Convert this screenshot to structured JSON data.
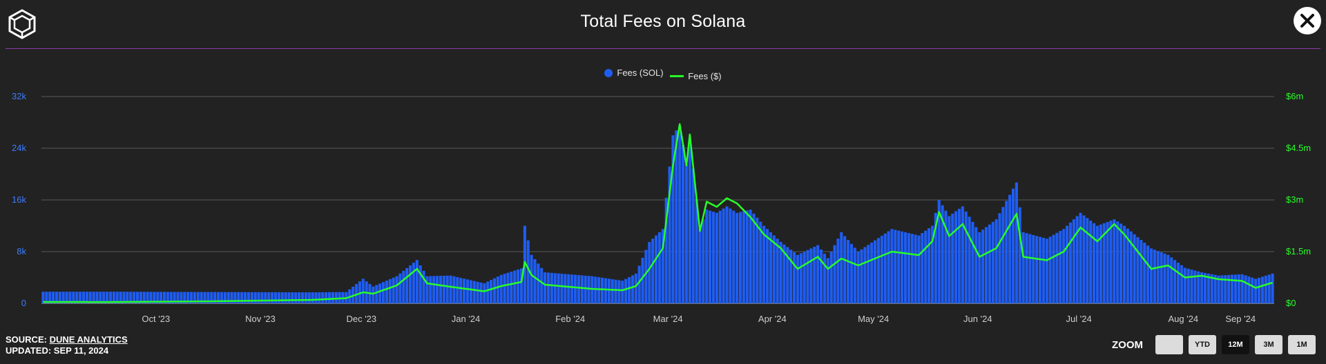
{
  "header": {
    "title": "Total Fees on Solana",
    "logo_icon": "cube-logo-icon",
    "close_icon": "close-icon"
  },
  "legend": {
    "sol_label": "Fees (SOL)",
    "usd_label": "Fees ($)"
  },
  "footer": {
    "source_prefix": "SOURCE: ",
    "source_link": "DUNE ANALYTICS",
    "updated": "UPDATED: SEP 11, 2024"
  },
  "zoom": {
    "label": "ZOOM",
    "buttons": [
      "",
      "YTD",
      "12M",
      "3M",
      "1M"
    ],
    "active": "12M"
  },
  "colors": {
    "bars": "#1f5df2",
    "line": "#28ff28",
    "left_axis": "#3d7bff",
    "right_axis": "#28ff28",
    "divider": "#8a3fa8"
  },
  "chart_data": {
    "type": "bar",
    "title": "Total Fees on Solana",
    "x_start_date": "2023-09-11",
    "x_end_date": "2024-09-10",
    "x_ticks": [
      "Oct '23",
      "Nov '23",
      "Dec '23",
      "Jan '24",
      "Feb '24",
      "Mar '24",
      "Apr '24",
      "May '24",
      "Jun '24",
      "Jul '24",
      "Aug '24",
      "Sep '24"
    ],
    "left_axis": {
      "ticks": [
        "0",
        "8k",
        "16k",
        "24k",
        "32k"
      ],
      "ylim": [
        0,
        32000
      ]
    },
    "right_axis": {
      "ticks": [
        "$0",
        "$1.5m",
        "$3m",
        "$4.5m",
        "$6m"
      ],
      "ylim": [
        0,
        6000000
      ]
    },
    "grid": true,
    "legend_position": "top-center",
    "series": [
      {
        "name": "Fees (SOL)",
        "type": "bar",
        "axis": "left",
        "sampled": [
          [
            "2023-09-11",
            1800
          ],
          [
            "2023-10-01",
            1800
          ],
          [
            "2023-11-01",
            1750
          ],
          [
            "2023-11-30",
            1700
          ],
          [
            "2023-12-10",
            1750
          ],
          [
            "2023-12-15",
            3800
          ],
          [
            "2023-12-18",
            2600
          ],
          [
            "2023-12-25",
            4200
          ],
          [
            "2023-12-31",
            6700
          ],
          [
            "2024-01-03",
            4200
          ],
          [
            "2024-01-10",
            4300
          ],
          [
            "2024-01-20",
            3100
          ],
          [
            "2024-01-25",
            4400
          ],
          [
            "2024-01-31",
            5400
          ],
          [
            "2024-02-01",
            12000
          ],
          [
            "2024-02-03",
            7500
          ],
          [
            "2024-02-07",
            4800
          ],
          [
            "2024-02-14",
            4500
          ],
          [
            "2024-02-21",
            4200
          ],
          [
            "2024-03-01",
            3500
          ],
          [
            "2024-03-05",
            4600
          ],
          [
            "2024-03-09",
            9500
          ],
          [
            "2024-03-13",
            11500
          ],
          [
            "2024-03-16",
            26000
          ],
          [
            "2024-03-18",
            27500
          ],
          [
            "2024-03-20",
            21500
          ],
          [
            "2024-03-21",
            25500
          ],
          [
            "2024-03-24",
            11500
          ],
          [
            "2024-03-26",
            14500
          ],
          [
            "2024-03-29",
            14000
          ],
          [
            "2024-04-01",
            15000
          ],
          [
            "2024-04-04",
            14000
          ],
          [
            "2024-04-08",
            14500
          ],
          [
            "2024-04-12",
            12000
          ],
          [
            "2024-04-17",
            9500
          ],
          [
            "2024-04-22",
            7500
          ],
          [
            "2024-04-28",
            9000
          ],
          [
            "2024-05-01",
            7000
          ],
          [
            "2024-05-05",
            11000
          ],
          [
            "2024-05-10",
            8000
          ],
          [
            "2024-05-20",
            11500
          ],
          [
            "2024-05-28",
            10500
          ],
          [
            "2024-06-01",
            12000
          ],
          [
            "2024-06-03",
            16000
          ],
          [
            "2024-06-06",
            13500
          ],
          [
            "2024-06-10",
            15000
          ],
          [
            "2024-06-15",
            11000
          ],
          [
            "2024-06-20",
            13000
          ],
          [
            "2024-06-26",
            18700
          ],
          [
            "2024-06-28",
            11000
          ],
          [
            "2024-07-05",
            10000
          ],
          [
            "2024-07-10",
            11500
          ],
          [
            "2024-07-15",
            14000
          ],
          [
            "2024-07-20",
            12000
          ],
          [
            "2024-07-25",
            13000
          ],
          [
            "2024-07-28",
            12000
          ],
          [
            "2024-08-05",
            8500
          ],
          [
            "2024-08-10",
            7500
          ],
          [
            "2024-08-15",
            5500
          ],
          [
            "2024-08-20",
            4800
          ],
          [
            "2024-08-25",
            4300
          ],
          [
            "2024-09-01",
            4500
          ],
          [
            "2024-09-05",
            3800
          ],
          [
            "2024-09-10",
            4600
          ]
        ]
      },
      {
        "name": "Fees ($)",
        "type": "line",
        "axis": "right",
        "sampled": [
          [
            "2023-09-11",
            40000
          ],
          [
            "2023-10-01",
            38000
          ],
          [
            "2023-11-01",
            60000
          ],
          [
            "2023-11-30",
            100000
          ],
          [
            "2023-12-10",
            150000
          ],
          [
            "2023-12-15",
            320000
          ],
          [
            "2023-12-18",
            280000
          ],
          [
            "2023-12-25",
            520000
          ],
          [
            "2023-12-31",
            1000000
          ],
          [
            "2024-01-03",
            580000
          ],
          [
            "2024-01-10",
            480000
          ],
          [
            "2024-01-20",
            350000
          ],
          [
            "2024-01-25",
            500000
          ],
          [
            "2024-01-31",
            620000
          ],
          [
            "2024-02-01",
            1200000
          ],
          [
            "2024-02-03",
            820000
          ],
          [
            "2024-02-07",
            540000
          ],
          [
            "2024-02-14",
            480000
          ],
          [
            "2024-02-21",
            420000
          ],
          [
            "2024-03-01",
            380000
          ],
          [
            "2024-03-05",
            500000
          ],
          [
            "2024-03-09",
            1000000
          ],
          [
            "2024-03-13",
            1600000
          ],
          [
            "2024-03-16",
            4000000
          ],
          [
            "2024-03-18",
            5200000
          ],
          [
            "2024-03-20",
            4000000
          ],
          [
            "2024-03-21",
            4900000
          ],
          [
            "2024-03-24",
            2100000
          ],
          [
            "2024-03-26",
            2950000
          ],
          [
            "2024-03-29",
            2800000
          ],
          [
            "2024-04-01",
            3050000
          ],
          [
            "2024-04-04",
            2900000
          ],
          [
            "2024-04-08",
            2500000
          ],
          [
            "2024-04-12",
            2000000
          ],
          [
            "2024-04-17",
            1600000
          ],
          [
            "2024-04-22",
            1000000
          ],
          [
            "2024-04-28",
            1350000
          ],
          [
            "2024-05-01",
            1000000
          ],
          [
            "2024-05-05",
            1300000
          ],
          [
            "2024-05-10",
            1100000
          ],
          [
            "2024-05-20",
            1500000
          ],
          [
            "2024-05-28",
            1400000
          ],
          [
            "2024-06-01",
            1800000
          ],
          [
            "2024-06-03",
            2650000
          ],
          [
            "2024-06-06",
            1950000
          ],
          [
            "2024-06-10",
            2300000
          ],
          [
            "2024-06-15",
            1350000
          ],
          [
            "2024-06-20",
            1600000
          ],
          [
            "2024-06-26",
            2600000
          ],
          [
            "2024-06-28",
            1350000
          ],
          [
            "2024-07-05",
            1250000
          ],
          [
            "2024-07-10",
            1500000
          ],
          [
            "2024-07-15",
            2200000
          ],
          [
            "2024-07-20",
            1800000
          ],
          [
            "2024-07-25",
            2300000
          ],
          [
            "2024-07-28",
            2000000
          ],
          [
            "2024-08-05",
            1000000
          ],
          [
            "2024-08-10",
            1100000
          ],
          [
            "2024-08-15",
            750000
          ],
          [
            "2024-08-20",
            800000
          ],
          [
            "2024-08-25",
            700000
          ],
          [
            "2024-09-01",
            650000
          ],
          [
            "2024-09-05",
            450000
          ],
          [
            "2024-09-10",
            600000
          ]
        ]
      }
    ]
  }
}
